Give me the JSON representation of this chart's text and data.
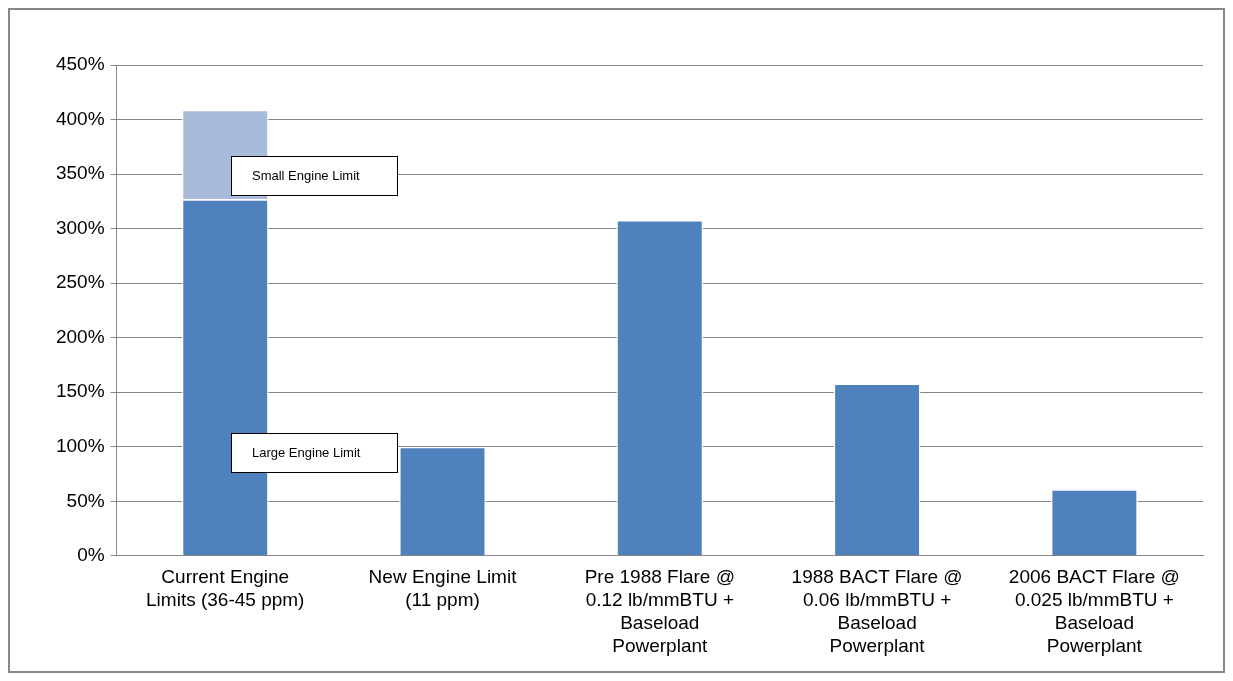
{
  "chart_data": {
    "type": "bar",
    "stacked": true,
    "categories": [
      "Current Engine Limits (36-45 ppm)",
      "New Engine Limit (11 ppm)",
      "Pre 1988 Flare @ 0.12 lb/mmBTU + Baseload Powerplant",
      "1988 BACT Flare @ 0.06 lb/mmBTU + Baseload Powerplant",
      "2006 BACT Flare @ 0.025 lb/mmBTU + Baseload Powerplant"
    ],
    "series": [
      {
        "color": "#4f81bd",
        "values": [
          327,
          100,
          308,
          158,
          61
        ]
      },
      {
        "color": "#a9bbdb",
        "values": [
          82,
          null,
          null,
          null,
          null
        ]
      }
    ],
    "ylim": [
      0,
      450
    ],
    "yticks": [
      {
        "value": 0,
        "label": "0%"
      },
      {
        "value": 50,
        "label": "50%"
      },
      {
        "value": 100,
        "label": "100%"
      },
      {
        "value": 150,
        "label": "150%"
      },
      {
        "value": 200,
        "label": "200%"
      },
      {
        "value": 250,
        "label": "250%"
      },
      {
        "value": 300,
        "label": "300%"
      },
      {
        "value": 350,
        "label": "350%"
      },
      {
        "value": 400,
        "label": "400%"
      },
      {
        "value": 450,
        "label": "450%"
      }
    ],
    "grid": "y",
    "legend": false,
    "annotations": [
      "Small Engine Limit",
      "Large Engine Limit"
    ]
  }
}
